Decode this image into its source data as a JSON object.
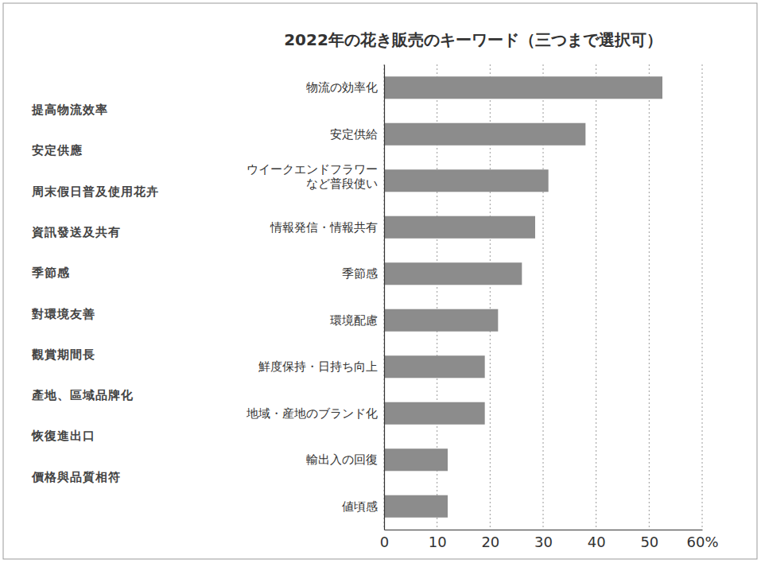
{
  "chart_data": {
    "type": "bar",
    "orientation": "horizontal",
    "title": "2022年の花き販売のキーワード（三つまで選択可）",
    "categories": [
      "物流の効率化",
      "安定供給",
      "ウイークエンドフラワーなど普段使い",
      "情報発信・情報共有",
      "季節感",
      "環境配慮",
      "鮮度保持・日持ち向上",
      "地域・産地のブランド化",
      "輸出入の回復",
      "値頃感"
    ],
    "values": [
      52.5,
      38,
      31,
      28.5,
      26,
      21.5,
      19,
      19,
      12,
      12
    ],
    "color": "#8c8c8c",
    "xlim": [
      0,
      60
    ],
    "xticks": [
      0,
      10,
      20,
      30,
      40,
      50,
      {
        "value": 60,
        "label": "60%"
      }
    ],
    "grid": true,
    "annotations": [
      "提高物流效率",
      "安定供應",
      "周末假日普及使用花卉",
      "資訊發送及共有",
      "季節感",
      "對環境友善",
      "觀賞期間長",
      "產地、區域品牌化",
      "恢復進出口",
      "價格與品質相符"
    ]
  }
}
